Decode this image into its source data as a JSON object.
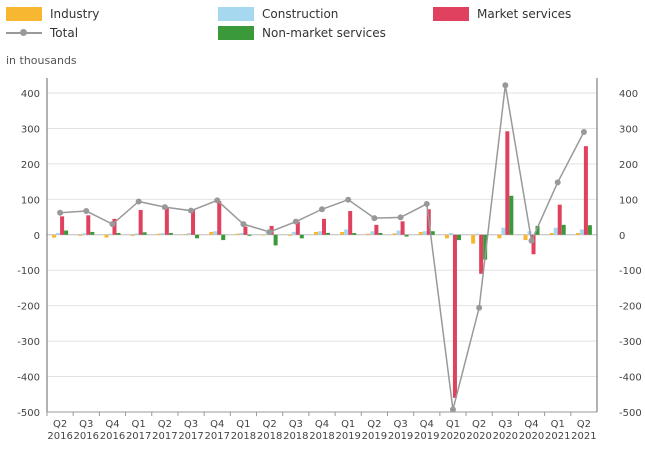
{
  "unit_label": "in thousands",
  "legend": [
    {
      "label": "Industry",
      "color": "#f7b731",
      "kind": "bar"
    },
    {
      "label": "Construction",
      "color": "#a6d8f0",
      "kind": "bar"
    },
    {
      "label": "Market services",
      "color": "#e0415f",
      "kind": "bar"
    },
    {
      "label": "Total",
      "color": "#999999",
      "kind": "line"
    },
    {
      "label": "Non-market services",
      "color": "#3a9a3a",
      "kind": "bar"
    }
  ],
  "chart_data": {
    "type": "bar",
    "categories": [
      [
        "Q2",
        "2016"
      ],
      [
        "Q3",
        "2016"
      ],
      [
        "Q4",
        "2016"
      ],
      [
        "Q1",
        "2017"
      ],
      [
        "Q2",
        "2017"
      ],
      [
        "Q3",
        "2017"
      ],
      [
        "Q4",
        "2017"
      ],
      [
        "Q1",
        "2018"
      ],
      [
        "Q2",
        "2018"
      ],
      [
        "Q3",
        "2018"
      ],
      [
        "Q4",
        "2018"
      ],
      [
        "Q1",
        "2019"
      ],
      [
        "Q2",
        "2019"
      ],
      [
        "Q3",
        "2019"
      ],
      [
        "Q4",
        "2019"
      ],
      [
        "Q1",
        "2020"
      ],
      [
        "Q2",
        "2020"
      ],
      [
        "Q3",
        "2020"
      ],
      [
        "Q4",
        "2020"
      ],
      [
        "Q1",
        "2021"
      ],
      [
        "Q2",
        "2021"
      ]
    ],
    "series": [
      {
        "name": "Industry",
        "color": "#f7b731",
        "values": [
          -8,
          -3,
          -8,
          -3,
          3,
          2,
          8,
          3,
          -2,
          -3,
          8,
          8,
          3,
          4,
          8,
          -10,
          -25,
          -10,
          -15,
          5,
          5
        ]
      },
      {
        "name": "Construction",
        "color": "#a6d8f0",
        "values": [
          5,
          4,
          3,
          4,
          5,
          5,
          10,
          5,
          8,
          8,
          10,
          15,
          10,
          12,
          10,
          5,
          3,
          20,
          10,
          20,
          15
        ]
      },
      {
        "name": "Market services",
        "color": "#e0415f",
        "values": [
          52,
          55,
          45,
          70,
          75,
          72,
          95,
          23,
          25,
          37,
          45,
          67,
          28,
          38,
          72,
          -460,
          -110,
          292,
          -55,
          85,
          250
        ]
      },
      {
        "name": "Non-market services",
        "color": "#3a9a3a",
        "values": [
          12,
          8,
          5,
          7,
          5,
          -10,
          -15,
          -3,
          -30,
          -10,
          5,
          5,
          5,
          -5,
          10,
          -15,
          -70,
          110,
          25,
          28,
          27
        ]
      },
      {
        "name": "Total",
        "type": "line",
        "color": "#999999",
        "values": [
          62,
          67,
          30,
          94,
          78,
          68,
          97,
          30,
          8,
          37,
          72,
          99,
          47,
          49,
          87,
          -493,
          -206,
          422,
          -17,
          148,
          290
        ]
      }
    ],
    "ylim": [
      -500,
      450
    ],
    "yticks": [
      -500,
      -400,
      -300,
      -200,
      -100,
      0,
      100,
      200,
      300,
      400
    ],
    "grid": true,
    "legend_position": "top"
  }
}
